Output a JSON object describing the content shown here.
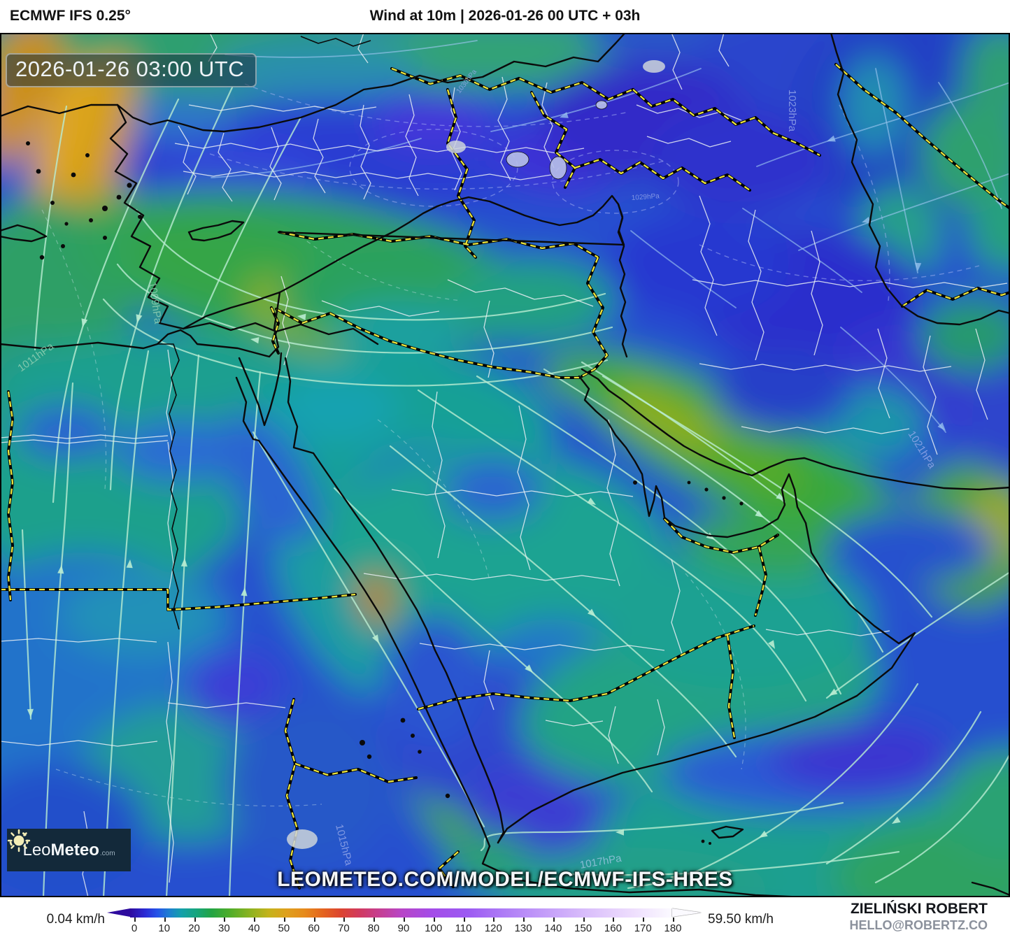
{
  "header": {
    "model_label": "ECMWF IFS 0.25°",
    "title": "Wind at 10m | 2026-01-26 00 UTC + 03h"
  },
  "map": {
    "timestamp_overlay": "2026-01-26 03:00 UTC",
    "watermark": "LEOMETEO.COM/MODEL/ECMWF-IFS-HRES",
    "logo": {
      "name_light": "Leo",
      "name_bold": "Meteo",
      "suffix": ".com"
    },
    "pressure_labels": [
      {
        "text": "1023hPa"
      },
      {
        "text": "1021hPa"
      },
      {
        "text": "1011hPa"
      },
      {
        "text": "1009hPa"
      },
      {
        "text": "1015hPa"
      },
      {
        "text": "1017hPa"
      },
      {
        "text": "1029hPa"
      },
      {
        "text": "1030hPa"
      }
    ]
  },
  "colorbar": {
    "min_label": "0.04 km/h",
    "max_label": "59.50 km/h",
    "ticks": [
      0,
      10,
      20,
      30,
      40,
      50,
      60,
      70,
      80,
      90,
      100,
      110,
      120,
      130,
      140,
      150,
      160,
      170,
      180
    ],
    "range": [
      0,
      180
    ],
    "gradient": [
      {
        "v": 0,
        "color": "#2e0b9e"
      },
      {
        "v": 5,
        "color": "#2b2bd5"
      },
      {
        "v": 9,
        "color": "#2553e8"
      },
      {
        "v": 13,
        "color": "#1e7fd0"
      },
      {
        "v": 17,
        "color": "#14a0ab"
      },
      {
        "v": 22,
        "color": "#17a57d"
      },
      {
        "v": 27,
        "color": "#23a444"
      },
      {
        "v": 33,
        "color": "#4ead2a"
      },
      {
        "v": 40,
        "color": "#8db321"
      },
      {
        "v": 46,
        "color": "#c4b31b"
      },
      {
        "v": 52,
        "color": "#dfa01d"
      },
      {
        "v": 58,
        "color": "#e68a1c"
      },
      {
        "v": 64,
        "color": "#e4641f"
      },
      {
        "v": 70,
        "color": "#dc4430"
      },
      {
        "v": 76,
        "color": "#d13a5e"
      },
      {
        "v": 82,
        "color": "#c73e8c"
      },
      {
        "v": 90,
        "color": "#b845c6"
      },
      {
        "v": 100,
        "color": "#a44ce8"
      },
      {
        "v": 112,
        "color": "#9c5af2"
      },
      {
        "v": 124,
        "color": "#ae7cf6"
      },
      {
        "v": 138,
        "color": "#c49ef9"
      },
      {
        "v": 152,
        "color": "#dabffb"
      },
      {
        "v": 166,
        "color": "#eddcfd"
      },
      {
        "v": 180,
        "color": "#fbfaff"
      }
    ]
  },
  "credits": {
    "author": "ZIELIŃSKI ROBERT",
    "email": "HELLO@ROBERTZ.CO"
  }
}
